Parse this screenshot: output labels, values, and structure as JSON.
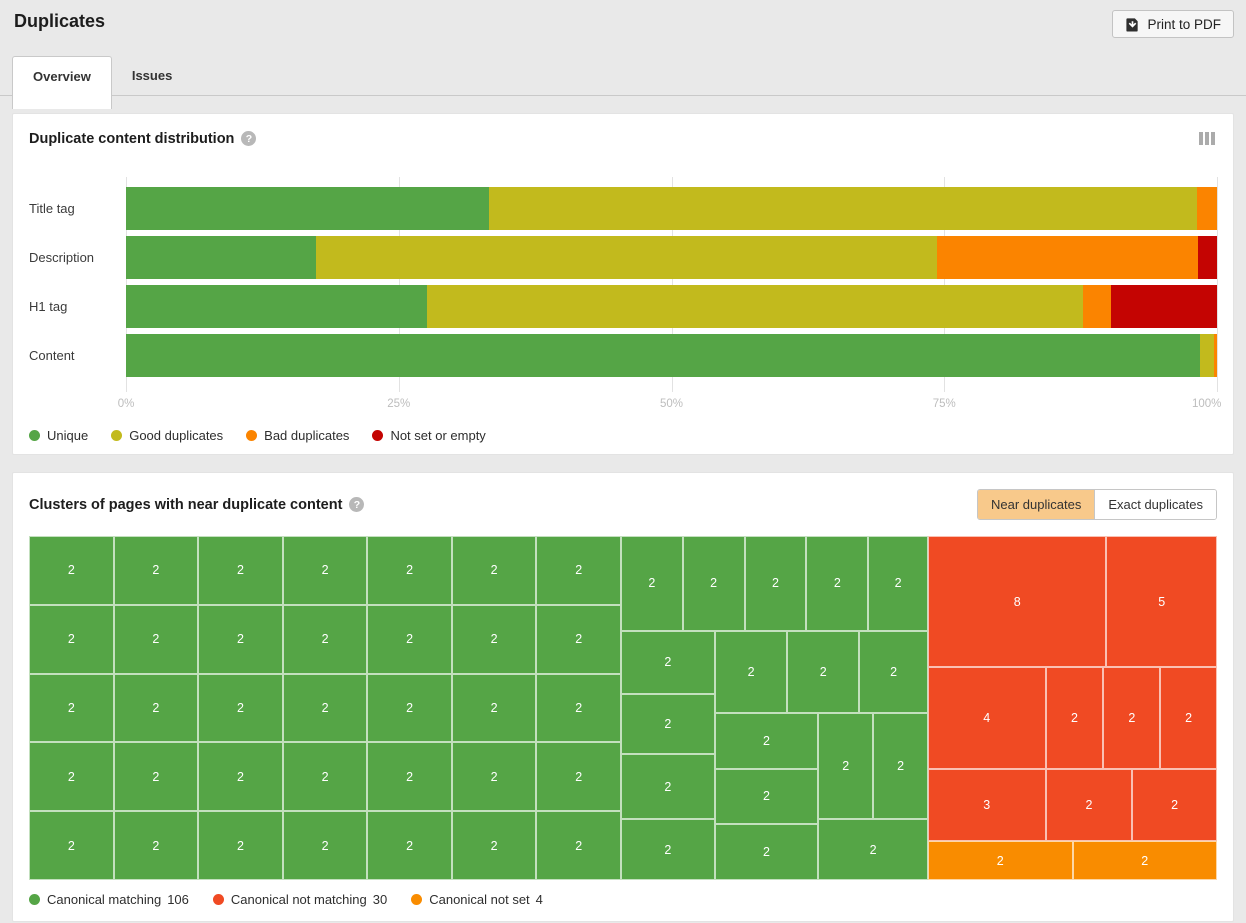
{
  "page": {
    "title": "Duplicates",
    "print_button_label": "Print to PDF"
  },
  "tabs": {
    "overview": "Overview",
    "issues": "Issues"
  },
  "colors": {
    "unique": "#55a546",
    "good": "#c2ba1d",
    "bad": "#fb8400",
    "notset": "#c40402",
    "match": "#55a546",
    "nomatch": "#f04a23",
    "noset": "#f98c00"
  },
  "distribution_card": {
    "title": "Duplicate content distribution",
    "help_icon": "?",
    "chart_data": {
      "type": "bar",
      "stacked": true,
      "orientation": "horizontal",
      "unit": "percent",
      "categories": [
        "Title tag",
        "Description",
        "H1 tag",
        "Content"
      ],
      "series": [
        {
          "name": "Unique",
          "key": "unique",
          "values": [
            33.3,
            17.4,
            27.6,
            98.4
          ]
        },
        {
          "name": "Good duplicates",
          "key": "good",
          "values": [
            64.9,
            56.9,
            60.1,
            1.3
          ]
        },
        {
          "name": "Bad duplicates",
          "key": "bad",
          "values": [
            1.8,
            24.0,
            2.6,
            0.3
          ]
        },
        {
          "name": "Not set or empty",
          "key": "notset",
          "values": [
            0,
            1.7,
            9.7,
            0
          ]
        }
      ],
      "x_ticks": [
        "0%",
        "25%",
        "50%",
        "75%",
        "100%"
      ],
      "xlim": [
        0,
        100
      ],
      "grid": true,
      "legend_position": "bottom"
    },
    "legend": [
      {
        "label": "Unique",
        "key": "unique"
      },
      {
        "label": "Good duplicates",
        "key": "good"
      },
      {
        "label": "Bad duplicates",
        "key": "bad"
      },
      {
        "label": "Not set or empty",
        "key": "notset"
      }
    ]
  },
  "clusters_card": {
    "title": "Clusters of pages with near duplicate content",
    "help_icon": "?",
    "toggle": {
      "near": "Near duplicates",
      "exact": "Exact duplicates",
      "active": "Near duplicates"
    },
    "chart_data": {
      "type": "treemap",
      "note": "cells are [x%, y%, w%, h%, value, group]",
      "cells": [
        [
          0,
          0,
          7.12,
          20,
          "2",
          "match"
        ],
        [
          7.12,
          0,
          7.12,
          20,
          "2",
          "match"
        ],
        [
          14.24,
          0,
          7.12,
          20,
          "2",
          "match"
        ],
        [
          21.36,
          0,
          7.12,
          20,
          "2",
          "match"
        ],
        [
          28.48,
          0,
          7.12,
          20,
          "2",
          "match"
        ],
        [
          35.6,
          0,
          7.11,
          20,
          "2",
          "match"
        ],
        [
          42.71,
          0,
          7.12,
          20,
          "2",
          "match"
        ],
        [
          0,
          20,
          7.12,
          20,
          "2",
          "match"
        ],
        [
          7.12,
          20,
          7.12,
          20,
          "2",
          "match"
        ],
        [
          14.24,
          20,
          7.12,
          20,
          "2",
          "match"
        ],
        [
          21.36,
          20,
          7.12,
          20,
          "2",
          "match"
        ],
        [
          28.48,
          20,
          7.12,
          20,
          "2",
          "match"
        ],
        [
          35.6,
          20,
          7.11,
          20,
          "2",
          "match"
        ],
        [
          42.71,
          20,
          7.12,
          20,
          "2",
          "match"
        ],
        [
          0,
          40,
          7.12,
          20,
          "2",
          "match"
        ],
        [
          7.12,
          40,
          7.12,
          20,
          "2",
          "match"
        ],
        [
          14.24,
          40,
          7.12,
          20,
          "2",
          "match"
        ],
        [
          21.36,
          40,
          7.12,
          20,
          "2",
          "match"
        ],
        [
          28.48,
          40,
          7.12,
          20,
          "2",
          "match"
        ],
        [
          35.6,
          40,
          7.11,
          20,
          "2",
          "match"
        ],
        [
          42.71,
          40,
          7.12,
          20,
          "2",
          "match"
        ],
        [
          0,
          60,
          7.12,
          20,
          "2",
          "match"
        ],
        [
          7.12,
          60,
          7.12,
          20,
          "2",
          "match"
        ],
        [
          14.24,
          60,
          7.12,
          20,
          "2",
          "match"
        ],
        [
          21.36,
          60,
          7.12,
          20,
          "2",
          "match"
        ],
        [
          28.48,
          60,
          7.12,
          20,
          "2",
          "match"
        ],
        [
          35.6,
          60,
          7.11,
          20,
          "2",
          "match"
        ],
        [
          42.71,
          60,
          7.12,
          20,
          "2",
          "match"
        ],
        [
          0,
          80,
          7.12,
          20,
          "2",
          "match"
        ],
        [
          7.12,
          80,
          7.12,
          20,
          "2",
          "match"
        ],
        [
          14.24,
          80,
          7.12,
          20,
          "2",
          "match"
        ],
        [
          21.36,
          80,
          7.12,
          20,
          "2",
          "match"
        ],
        [
          28.48,
          80,
          7.12,
          20,
          "2",
          "match"
        ],
        [
          35.6,
          80,
          7.11,
          20,
          "2",
          "match"
        ],
        [
          42.71,
          80,
          7.12,
          20,
          "2",
          "match"
        ],
        [
          49.83,
          0,
          5.2,
          27.6,
          "2",
          "match"
        ],
        [
          55.03,
          0,
          5.2,
          27.6,
          "2",
          "match"
        ],
        [
          60.23,
          0,
          5.21,
          27.6,
          "2",
          "match"
        ],
        [
          65.44,
          0,
          5.2,
          27.6,
          "2",
          "match"
        ],
        [
          70.64,
          0,
          5.03,
          27.6,
          "2",
          "match"
        ],
        [
          49.83,
          27.6,
          7.89,
          18.3,
          "2",
          "match"
        ],
        [
          49.83,
          45.9,
          7.89,
          17.5,
          "2",
          "match"
        ],
        [
          49.83,
          63.4,
          7.89,
          18.9,
          "2",
          "match"
        ],
        [
          49.83,
          82.3,
          7.89,
          17.7,
          "2",
          "match"
        ],
        [
          57.72,
          27.6,
          6.12,
          23.9,
          "2",
          "match"
        ],
        [
          63.84,
          27.6,
          6.04,
          23.9,
          "2",
          "match"
        ],
        [
          69.88,
          27.6,
          5.79,
          23.9,
          "2",
          "match"
        ],
        [
          57.72,
          51.5,
          8.72,
          16.2,
          "2",
          "match"
        ],
        [
          57.72,
          67.7,
          8.72,
          16.0,
          "2",
          "match"
        ],
        [
          57.72,
          83.7,
          8.72,
          16.3,
          "2",
          "match"
        ],
        [
          66.44,
          51.5,
          4.62,
          30.8,
          "2",
          "match"
        ],
        [
          71.06,
          51.5,
          4.61,
          30.8,
          "2",
          "match"
        ],
        [
          66.44,
          82.3,
          9.23,
          17.7,
          "2",
          "match"
        ],
        [
          75.67,
          0,
          15.02,
          38.1,
          "8",
          "nomatch"
        ],
        [
          90.69,
          0,
          9.31,
          38.1,
          "5",
          "nomatch"
        ],
        [
          75.67,
          38.1,
          9.9,
          29.6,
          "4",
          "nomatch"
        ],
        [
          85.57,
          38.1,
          4.87,
          29.6,
          "2",
          "nomatch"
        ],
        [
          90.44,
          38.1,
          4.78,
          29.6,
          "2",
          "nomatch"
        ],
        [
          95.22,
          38.1,
          4.78,
          29.6,
          "2",
          "nomatch"
        ],
        [
          75.67,
          67.7,
          9.9,
          21.0,
          "3",
          "nomatch"
        ],
        [
          85.57,
          67.7,
          7.3,
          21.0,
          "2",
          "nomatch"
        ],
        [
          92.87,
          67.7,
          7.13,
          21.0,
          "2",
          "nomatch"
        ],
        [
          75.67,
          88.7,
          12.17,
          11.3,
          "2",
          "noset"
        ],
        [
          87.84,
          88.7,
          12.16,
          11.3,
          "2",
          "noset"
        ]
      ]
    },
    "legend": [
      {
        "label": "Canonical matching",
        "value": "106",
        "key": "match"
      },
      {
        "label": "Canonical not matching",
        "value": "30",
        "key": "nomatch"
      },
      {
        "label": "Canonical not set",
        "value": "4",
        "key": "noset"
      }
    ]
  }
}
